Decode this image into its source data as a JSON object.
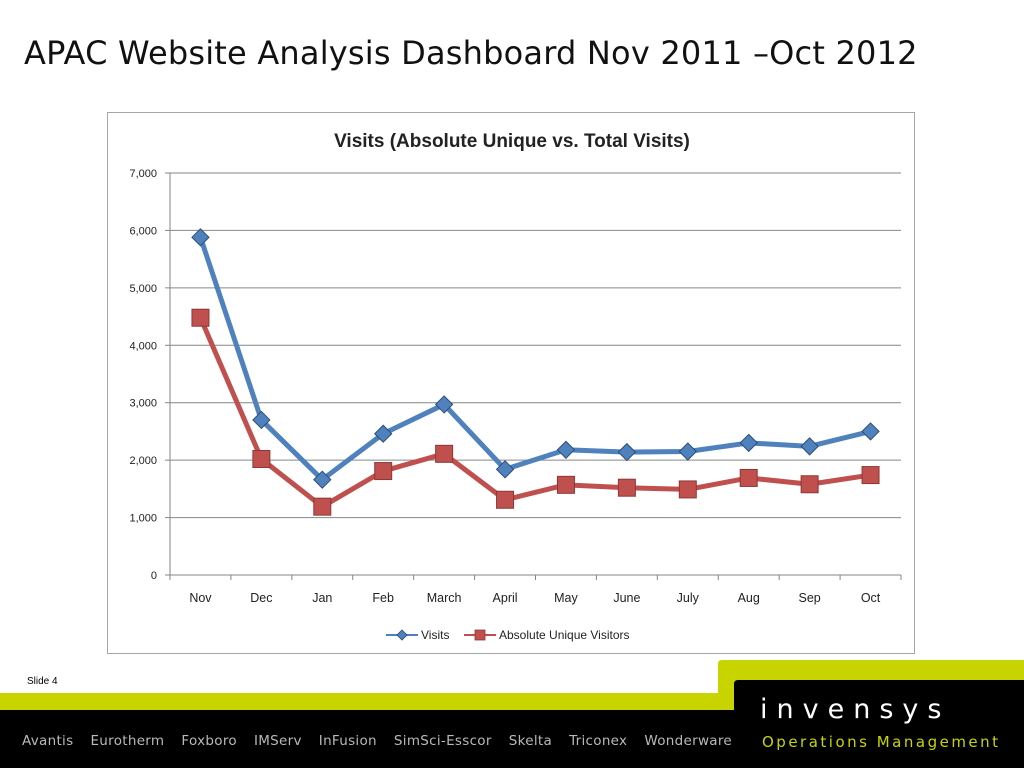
{
  "slide": {
    "title": "APAC Website Analysis Dashboard Nov 2011 –Oct 2012",
    "number_label": "Slide 4"
  },
  "colors": {
    "visits": "#4f81bd",
    "unique": "#c0504d",
    "footer_green": "#c8d400",
    "footer_black": "#000000",
    "grid": "#868686"
  },
  "chart_data": {
    "type": "line",
    "title": "Visits (Absolute Unique vs. Total Visits)",
    "categories": [
      "Nov",
      "Dec",
      "Jan",
      "Feb",
      "March",
      "April",
      "May",
      "June",
      "July",
      "Aug",
      "Sep",
      "Oct"
    ],
    "series": [
      {
        "name": "Visits",
        "values": [
          5880,
          2700,
          1660,
          2460,
          2970,
          1840,
          2180,
          2140,
          2150,
          2300,
          2240,
          2500
        ],
        "marker": "diamond"
      },
      {
        "name": "Absolute Unique Visitors",
        "values": [
          4480,
          2020,
          1190,
          1810,
          2110,
          1310,
          1570,
          1520,
          1490,
          1690,
          1580,
          1740
        ],
        "marker": "square"
      }
    ],
    "ylim": [
      0,
      7000
    ],
    "yticks": [
      0,
      1000,
      2000,
      3000,
      4000,
      5000,
      6000,
      7000
    ],
    "ytick_labels": [
      "0",
      "1,000",
      "2,000",
      "3,000",
      "4,000",
      "5,000",
      "6,000",
      "7,000"
    ],
    "grid": true,
    "legend": "bottom"
  },
  "footer": {
    "brands": [
      "Avantis",
      "Eurotherm",
      "Foxboro",
      "IMServ",
      "InFusion",
      "SimSci-Esscor",
      "Skelta",
      "Triconex",
      "Wonderware"
    ],
    "logo_text": "invensys",
    "tagline": "Operations Management"
  }
}
